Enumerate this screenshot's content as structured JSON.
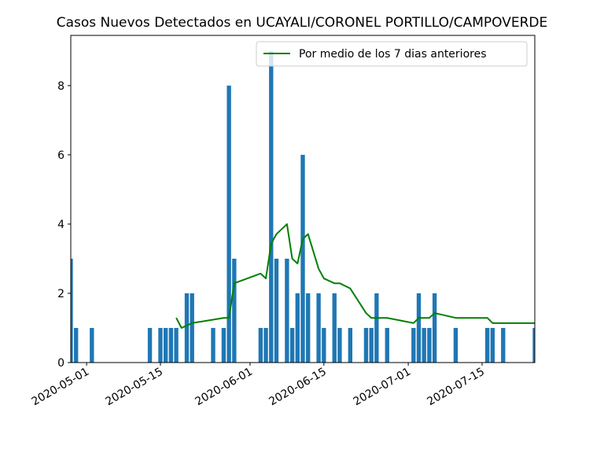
{
  "chart_data": {
    "type": "bar",
    "title": "Casos Nuevos Detectados en UCAYALI/CORONEL PORTILLO/CAMPOVERDE",
    "xlabel": "",
    "ylabel": "",
    "xlim": [
      "2020-04-28",
      "2020-07-25"
    ],
    "ylim": [
      0,
      9.45
    ],
    "y_ticks": [
      0,
      2,
      4,
      6,
      8
    ],
    "x_ticks": [
      "2020-05-01",
      "2020-05-15",
      "2020-06-01",
      "2020-06-15",
      "2020-07-01",
      "2020-07-15"
    ],
    "grid": false,
    "legend_position": "top-right",
    "bar_color": "#1f77b4",
    "line_color": "#008000",
    "bars": {
      "dates": [
        "2020-04-28",
        "2020-04-29",
        "2020-05-02",
        "2020-05-13",
        "2020-05-15",
        "2020-05-16",
        "2020-05-17",
        "2020-05-18",
        "2020-05-20",
        "2020-05-21",
        "2020-05-25",
        "2020-05-27",
        "2020-05-28",
        "2020-05-29",
        "2020-06-03",
        "2020-06-04",
        "2020-06-05",
        "2020-06-06",
        "2020-06-08",
        "2020-06-09",
        "2020-06-10",
        "2020-06-11",
        "2020-06-12",
        "2020-06-14",
        "2020-06-15",
        "2020-06-17",
        "2020-06-18",
        "2020-06-20",
        "2020-06-23",
        "2020-06-24",
        "2020-06-25",
        "2020-06-27",
        "2020-07-02",
        "2020-07-03",
        "2020-07-04",
        "2020-07-05",
        "2020-07-06",
        "2020-07-10",
        "2020-07-16",
        "2020-07-17",
        "2020-07-19",
        "2020-07-25"
      ],
      "values": [
        3,
        1,
        1,
        1,
        1,
        1,
        1,
        1,
        2,
        2,
        1,
        1,
        8,
        3,
        1,
        1,
        9,
        3,
        3,
        1,
        2,
        6,
        2,
        2,
        1,
        2,
        1,
        1,
        1,
        1,
        2,
        1,
        1,
        2,
        1,
        1,
        2,
        1,
        1,
        1,
        1,
        1
      ]
    },
    "series": [
      {
        "name": "Por medio de los 7 dias anteriores",
        "dates": [
          "2020-05-18",
          "2020-05-19",
          "2020-05-21",
          "2020-05-27",
          "2020-05-28",
          "2020-05-29",
          "2020-06-03",
          "2020-06-04",
          "2020-06-05",
          "2020-06-06",
          "2020-06-08",
          "2020-06-09",
          "2020-06-10",
          "2020-06-11",
          "2020-06-12",
          "2020-06-14",
          "2020-06-15",
          "2020-06-17",
          "2020-06-18",
          "2020-06-20",
          "2020-06-23",
          "2020-06-24",
          "2020-06-25",
          "2020-06-27",
          "2020-07-02",
          "2020-07-03",
          "2020-07-04",
          "2020-07-05",
          "2020-07-06",
          "2020-07-10",
          "2020-07-16",
          "2020-07-17",
          "2020-07-19",
          "2020-07-25"
        ],
        "values": [
          1.29,
          1.0,
          1.14,
          1.29,
          1.29,
          2.29,
          2.57,
          2.43,
          3.43,
          3.71,
          4.0,
          3.0,
          2.86,
          3.57,
          3.71,
          2.71,
          2.43,
          2.29,
          2.29,
          2.14,
          1.43,
          1.29,
          1.29,
          1.29,
          1.14,
          1.29,
          1.29,
          1.29,
          1.43,
          1.29,
          1.29,
          1.14,
          1.14,
          1.14
        ]
      }
    ]
  }
}
